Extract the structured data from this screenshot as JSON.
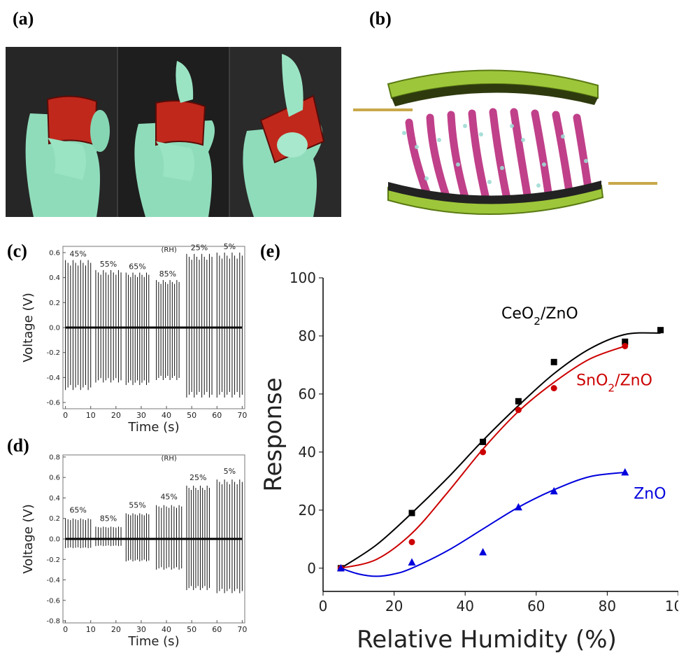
{
  "panel_labels": {
    "a": "(a)",
    "b": "(b)",
    "c": "(c)",
    "d": "(d)",
    "e": "(e)"
  },
  "chart_data": [
    {
      "panel": "c",
      "type": "line",
      "xlabel": "Time (s)",
      "ylabel": "Voltage (V)",
      "xlim": [
        -1,
        71
      ],
      "ylim": [
        -0.65,
        0.65
      ],
      "xticks": [
        "0",
        "10",
        "20",
        "30",
        "40",
        "50",
        "60",
        "70"
      ],
      "yticks": [
        "0.6",
        "0.4",
        "0.2",
        "0.0",
        "-0.2",
        "-0.4",
        "-0.6"
      ],
      "annotation": "(RH)",
      "segments": [
        {
          "label": "45%",
          "x": [
            0,
            10
          ],
          "peak": 0.54,
          "trough": -0.5
        },
        {
          "label": "55%",
          "x": [
            12,
            22
          ],
          "peak": 0.46,
          "trough": -0.44
        },
        {
          "label": "65%",
          "x": [
            24,
            33
          ],
          "peak": 0.44,
          "trough": -0.46
        },
        {
          "label": "85%",
          "x": [
            36,
            45
          ],
          "peak": 0.38,
          "trough": -0.42
        },
        {
          "label": "25%",
          "x": [
            48,
            58
          ],
          "peak": 0.59,
          "trough": -0.56
        },
        {
          "label": "5%",
          "x": [
            60,
            70
          ],
          "peak": 0.6,
          "trough": -0.56
        }
      ]
    },
    {
      "panel": "d",
      "type": "line",
      "xlabel": "Time (s)",
      "ylabel": "Voltage (V)",
      "xlim": [
        -1,
        71
      ],
      "ylim": [
        -0.82,
        0.82
      ],
      "xticks": [
        "0",
        "10",
        "20",
        "30",
        "40",
        "50",
        "60",
        "70"
      ],
      "yticks": [
        "0.8",
        "0.6",
        "0.4",
        "0.2",
        "0.0",
        "-0.2",
        "-0.4",
        "-0.6",
        "-0.8"
      ],
      "annotation": "(RH)",
      "segments": [
        {
          "label": "65%",
          "x": [
            0,
            10
          ],
          "peak": 0.2,
          "trough": -0.09
        },
        {
          "label": "85%",
          "x": [
            12,
            22
          ],
          "peak": 0.12,
          "trough": -0.07
        },
        {
          "label": "55%",
          "x": [
            24,
            33
          ],
          "peak": 0.25,
          "trough": -0.22
        },
        {
          "label": "45%",
          "x": [
            36,
            46
          ],
          "peak": 0.33,
          "trough": -0.3
        },
        {
          "label": "25%",
          "x": [
            48,
            57
          ],
          "peak": 0.52,
          "trough": -0.5
        },
        {
          "label": "5%",
          "x": [
            60,
            70
          ],
          "peak": 0.58,
          "trough": -0.53
        }
      ]
    },
    {
      "panel": "e",
      "type": "scatter",
      "xlabel": "Relative Humidity (%)",
      "ylabel": "Response",
      "xlim": [
        0,
        100
      ],
      "ylim": [
        -8,
        100
      ],
      "xticks": [
        "0",
        "20",
        "40",
        "60",
        "80",
        "100"
      ],
      "yticks": [
        "100",
        "80",
        "60",
        "40",
        "20",
        "0"
      ],
      "series": [
        {
          "name": "CeO2/ZnO",
          "color": "#000000",
          "marker": "square",
          "x": [
            5,
            25,
            45,
            55,
            65,
            85,
            95
          ],
          "y": [
            0,
            19,
            43.5,
            57.5,
            71,
            78,
            82
          ],
          "fit": [
            [
              5,
              0
            ],
            [
              15,
              8
            ],
            [
              25,
              19
            ],
            [
              35,
              31
            ],
            [
              45,
              44
            ],
            [
              55,
              56
            ],
            [
              65,
              67
            ],
            [
              75,
              75.5
            ],
            [
              85,
              80.5
            ],
            [
              95,
              81
            ]
          ]
        },
        {
          "name": "SnO2/ZnO",
          "color": "#cc0000",
          "marker": "circle",
          "x": [
            5,
            25,
            45,
            55,
            65,
            85
          ],
          "y": [
            0,
            9,
            40,
            54.5,
            62,
            76.5
          ],
          "fit": [
            [
              5,
              0
            ],
            [
              15,
              3
            ],
            [
              25,
              12
            ],
            [
              35,
              26
            ],
            [
              45,
              41
            ],
            [
              55,
              54
            ],
            [
              65,
              64
            ],
            [
              75,
              72
            ],
            [
              85,
              76.5
            ]
          ]
        },
        {
          "name": "ZnO",
          "color": "#0000dd",
          "marker": "triangle",
          "x": [
            5,
            25,
            45,
            55,
            65,
            85
          ],
          "y": [
            0,
            2,
            5.5,
            21,
            26.5,
            33
          ],
          "fit": [
            [
              5,
              0
            ],
            [
              10,
              -2
            ],
            [
              15,
              -2.8
            ],
            [
              20,
              -2
            ],
            [
              25,
              0
            ],
            [
              35,
              6
            ],
            [
              45,
              13.5
            ],
            [
              55,
              21
            ],
            [
              65,
              27
            ],
            [
              75,
              31.5
            ],
            [
              85,
              33
            ]
          ]
        }
      ]
    }
  ]
}
